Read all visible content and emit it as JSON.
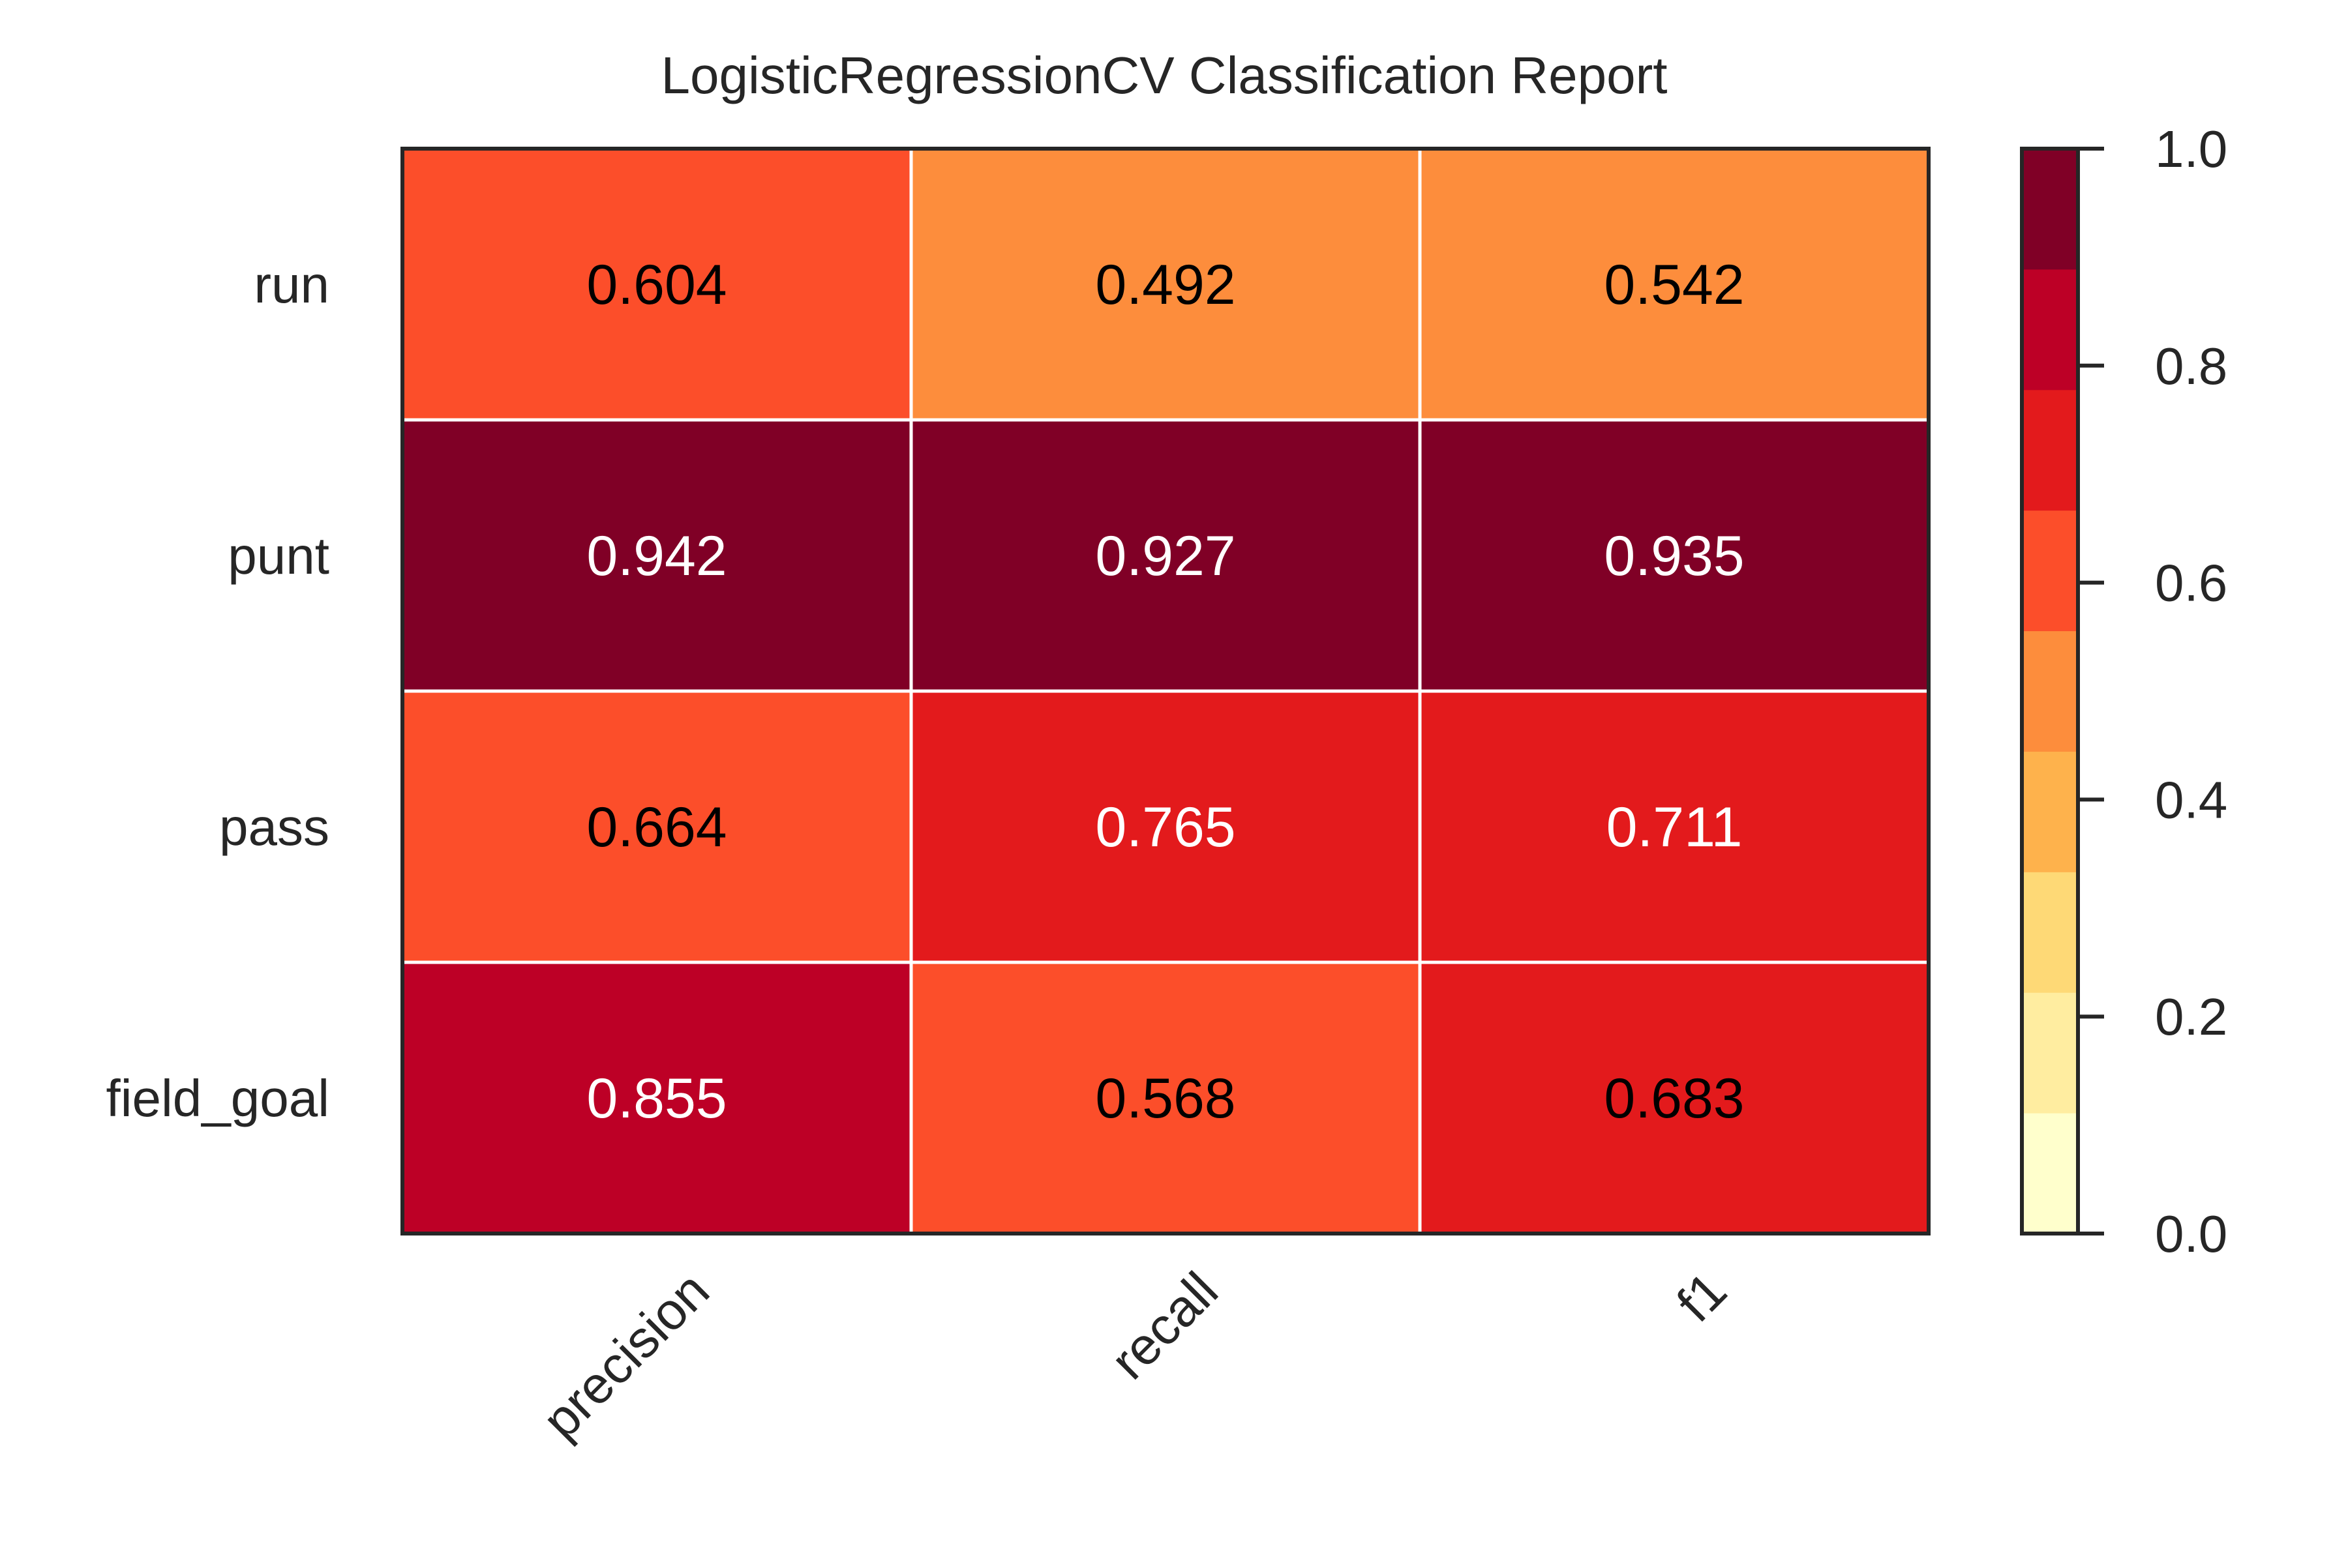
{
  "chart_data": {
    "type": "heatmap",
    "title": "LogisticRegressionCV Classification Report",
    "xlabel": "",
    "ylabel": "",
    "columns": [
      "precision",
      "recall",
      "f1"
    ],
    "rows": [
      "run",
      "punt",
      "pass",
      "field_goal"
    ],
    "values": [
      [
        0.604,
        0.492,
        0.542
      ],
      [
        0.942,
        0.927,
        0.935
      ],
      [
        0.664,
        0.765,
        0.711
      ],
      [
        0.855,
        0.568,
        0.683
      ]
    ],
    "value_labels": [
      [
        "0.604",
        "0.492",
        "0.542"
      ],
      [
        "0.942",
        "0.927",
        "0.935"
      ],
      [
        "0.664",
        "0.765",
        "0.711"
      ],
      [
        "0.855",
        "0.568",
        "0.683"
      ]
    ],
    "colorbar": {
      "range": [
        0.0,
        1.0
      ],
      "ticks": [
        0.0,
        0.2,
        0.4,
        0.6,
        0.8,
        1.0
      ],
      "tick_labels": [
        "0.0",
        "0.2",
        "0.4",
        "0.6",
        "0.8",
        "1.0"
      ],
      "levels": 9,
      "colors": [
        "#ffffcc",
        "#ffeda0",
        "#fed976",
        "#feb24c",
        "#fd8d3c",
        "#fc4e2a",
        "#e31a1c",
        "#bd0026",
        "#800026"
      ]
    },
    "grid": true,
    "legend": "colorbar-right"
  }
}
